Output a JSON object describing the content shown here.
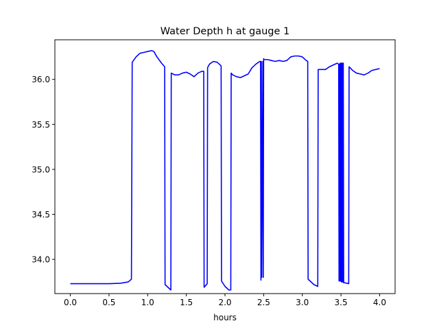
{
  "chart_data": {
    "type": "line",
    "title": "Water Depth h at gauge 1",
    "xlabel": "hours",
    "ylabel": "",
    "xlim": [
      -0.2,
      4.2
    ],
    "ylim": [
      33.62,
      36.44
    ],
    "xticks": [
      0.0,
      0.5,
      1.0,
      1.5,
      2.0,
      2.5,
      3.0,
      3.5,
      4.0
    ],
    "xtick_labels": [
      "0.0",
      "0.5",
      "1.0",
      "1.5",
      "2.0",
      "2.5",
      "3.0",
      "3.5",
      "4.0"
    ],
    "yticks": [
      34.0,
      34.5,
      35.0,
      35.5,
      36.0
    ],
    "ytick_labels": [
      "34.0",
      "34.5",
      "35.0",
      "35.5",
      "36.0"
    ],
    "grid": false,
    "legend": "none",
    "line_color": "#0000ff",
    "series": [
      {
        "x": [
          0.0,
          0.5,
          0.65,
          0.75,
          0.79,
          0.8,
          0.85,
          0.9,
          0.95,
          1.0,
          1.05,
          1.08,
          1.12,
          1.18,
          1.22,
          1.225,
          1.3,
          1.305,
          1.35,
          1.4,
          1.45,
          1.5,
          1.55,
          1.6,
          1.65,
          1.7,
          1.725,
          1.73,
          1.77,
          1.775,
          1.8,
          1.85,
          1.9,
          1.95,
          1.955,
          2.0,
          2.05,
          2.075,
          2.08,
          2.1,
          2.15,
          2.2,
          2.25,
          2.3,
          2.35,
          2.4,
          2.45,
          2.46,
          2.465,
          2.47,
          2.475,
          2.49,
          2.495,
          2.5,
          2.505,
          2.52,
          2.55,
          2.6,
          2.65,
          2.7,
          2.75,
          2.8,
          2.85,
          2.9,
          2.95,
          3.0,
          3.05,
          3.07,
          3.075,
          3.15,
          3.2,
          3.205,
          3.25,
          3.3,
          3.35,
          3.4,
          3.45,
          3.47,
          3.475,
          3.48,
          3.485,
          3.49,
          3.495,
          3.5,
          3.505,
          3.51,
          3.515,
          3.52,
          3.525,
          3.53,
          3.535,
          3.55,
          3.6,
          3.605,
          3.65,
          3.7,
          3.75,
          3.8,
          3.85,
          3.9,
          3.95,
          4.0
        ],
        "y": [
          33.73,
          33.73,
          33.735,
          33.75,
          33.78,
          36.19,
          36.25,
          36.29,
          36.3,
          36.31,
          36.32,
          36.31,
          36.25,
          36.18,
          36.14,
          33.72,
          33.66,
          36.07,
          36.05,
          36.05,
          36.07,
          36.08,
          36.06,
          36.03,
          36.07,
          36.09,
          36.09,
          33.69,
          33.73,
          36.13,
          36.17,
          36.2,
          36.19,
          36.15,
          33.76,
          33.7,
          33.66,
          33.66,
          36.07,
          36.05,
          36.03,
          36.02,
          36.04,
          36.06,
          36.13,
          36.17,
          36.2,
          36.2,
          33.77,
          36.2,
          33.8,
          36.2,
          33.8,
          36.23,
          36.22,
          36.22,
          36.22,
          36.21,
          36.2,
          36.21,
          36.2,
          36.21,
          36.25,
          36.26,
          36.26,
          36.25,
          36.21,
          36.2,
          33.78,
          33.72,
          33.7,
          36.11,
          36.11,
          36.11,
          36.14,
          36.16,
          36.18,
          36.17,
          33.76,
          36.17,
          33.76,
          36.18,
          33.76,
          36.18,
          33.75,
          36.18,
          33.75,
          36.18,
          33.75,
          36.18,
          33.74,
          33.74,
          33.73,
          36.14,
          36.1,
          36.07,
          36.06,
          36.05,
          36.07,
          36.1,
          36.11,
          36.12
        ]
      }
    ]
  }
}
